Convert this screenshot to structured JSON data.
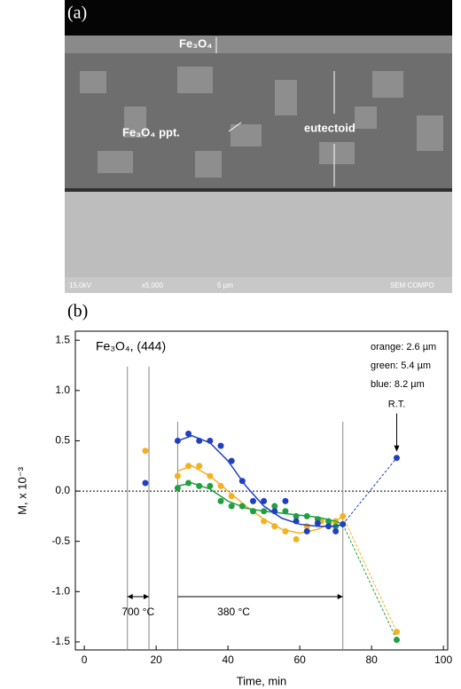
{
  "panel_a": {
    "label": "(a)",
    "layer_label": "Fe₃O₄",
    "ppt_label": "Fe₃O₄ ppt.",
    "eutectoid_label": "eutectoid",
    "footer": [
      "15.0kV",
      "x5,000",
      "5 μm",
      "SEM COMPO"
    ]
  },
  "panel_b_label": "(b)",
  "chart_data": {
    "type": "scatter",
    "title": "Fe₃O₄, (444)",
    "y_label": "M, x 10⁻³",
    "x_label": "Time, min",
    "xlim": [
      -2.5,
      101.2
    ],
    "ylim": [
      -1.58,
      1.59
    ],
    "xticks": [
      0,
      20,
      40,
      60,
      80,
      100
    ],
    "yticks": [
      1.5,
      {
        "value": 1.0,
        "label": "1.0"
      },
      0.5,
      {
        "value": 0.0,
        "label": "0.0"
      },
      -0.5,
      {
        "value": -1.0,
        "label": "-1.0"
      },
      -1.5
    ],
    "vlines": [
      12,
      18,
      26,
      72
    ],
    "annotations": [
      "700 °C",
      "380 °C",
      "R.T."
    ],
    "series": [
      {
        "name": "orange: 2.6 µm",
        "color": "#f5b020",
        "x": [
          17,
          26,
          29,
          32,
          35,
          38,
          41,
          44,
          47,
          50,
          53,
          56,
          59,
          62,
          66,
          70,
          72,
          87
        ],
        "values": [
          0.4,
          0.15,
          0.25,
          0.25,
          0.15,
          0.05,
          -0.05,
          -0.15,
          -0.2,
          -0.3,
          -0.35,
          -0.4,
          -0.48,
          -0.35,
          -0.3,
          -0.3,
          -0.25,
          -1.4
        ],
        "fit": {
          "x": [
            26,
            30,
            35,
            40,
            45,
            50,
            55,
            60,
            65,
            70,
            72
          ],
          "values": [
            0.2,
            0.25,
            0.15,
            0.0,
            -0.15,
            -0.28,
            -0.38,
            -0.42,
            -0.38,
            -0.3,
            -0.25
          ]
        }
      },
      {
        "name": "green: 5.4 µm",
        "color": "#20a040",
        "x": [
          26,
          29,
          32,
          35,
          38,
          41,
          44,
          47,
          50,
          53,
          56,
          59,
          62,
          65,
          68,
          70,
          87
        ],
        "values": [
          0.03,
          0.08,
          0.05,
          0.05,
          -0.1,
          -0.15,
          -0.15,
          -0.2,
          -0.2,
          -0.15,
          -0.2,
          -0.25,
          -0.25,
          -0.28,
          -0.3,
          -0.35,
          -1.48
        ],
        "fit": {
          "x": [
            26,
            30,
            35,
            40,
            45,
            50,
            55,
            60,
            65,
            70,
            72
          ],
          "values": [
            0.05,
            0.08,
            0.02,
            -0.1,
            -0.17,
            -0.2,
            -0.22,
            -0.24,
            -0.26,
            -0.3,
            -0.33
          ]
        }
      },
      {
        "name": "blue: 8.2 µm",
        "color": "#2040c0",
        "x": [
          17,
          26,
          29,
          32,
          35,
          38,
          41,
          44,
          47,
          50,
          53,
          56,
          59,
          62,
          65,
          68,
          70,
          72,
          87
        ],
        "values": [
          0.08,
          0.5,
          0.57,
          0.5,
          0.5,
          0.45,
          0.3,
          0.1,
          -0.1,
          -0.1,
          -0.2,
          -0.1,
          -0.3,
          -0.4,
          -0.32,
          -0.35,
          -0.4,
          -0.33,
          0.33
        ],
        "fit": {
          "x": [
            26,
            30,
            35,
            40,
            45,
            50,
            55,
            60,
            65,
            70,
            72
          ],
          "values": [
            0.5,
            0.55,
            0.48,
            0.3,
            0.05,
            -0.15,
            -0.27,
            -0.33,
            -0.35,
            -0.35,
            -0.33
          ]
        }
      }
    ]
  }
}
